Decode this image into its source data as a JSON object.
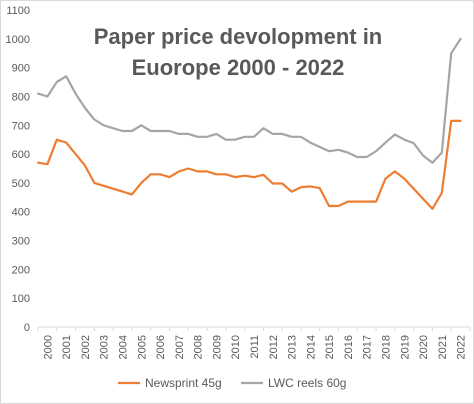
{
  "chart_data": {
    "type": "line",
    "title_lines": [
      "Paper price devolopment in",
      "Euorope 2000 - 2022"
    ],
    "xlabel": "",
    "ylabel": "",
    "ylim": [
      0,
      1100
    ],
    "yticks": [
      0,
      100,
      200,
      300,
      400,
      500,
      600,
      700,
      800,
      900,
      1000,
      1100
    ],
    "xlim": [
      2000,
      2023
    ],
    "xticks": [
      2000,
      2001,
      2002,
      2003,
      2004,
      2005,
      2006,
      2007,
      2008,
      2009,
      2010,
      2011,
      2012,
      2013,
      2014,
      2015,
      2016,
      2017,
      2018,
      2019,
      2020,
      2021,
      2022
    ],
    "grid": false,
    "legend_position": "bottom",
    "series": [
      {
        "name": "Newsprint 45g",
        "color": "#ed7d31",
        "points": [
          [
            2000,
            570
          ],
          [
            2000.5,
            565
          ],
          [
            2001,
            650
          ],
          [
            2001.5,
            640
          ],
          [
            2002,
            600
          ],
          [
            2002.5,
            560
          ],
          [
            2003,
            500
          ],
          [
            2003.5,
            490
          ],
          [
            2004,
            480
          ],
          [
            2004.5,
            470
          ],
          [
            2005,
            460
          ],
          [
            2005.5,
            500
          ],
          [
            2006,
            530
          ],
          [
            2006.5,
            530
          ],
          [
            2007,
            520
          ],
          [
            2007.5,
            540
          ],
          [
            2008,
            550
          ],
          [
            2008.5,
            540
          ],
          [
            2009,
            540
          ],
          [
            2009.5,
            530
          ],
          [
            2010,
            530
          ],
          [
            2010.5,
            520
          ],
          [
            2011,
            525
          ],
          [
            2011.5,
            520
          ],
          [
            2012,
            528
          ],
          [
            2012.5,
            498
          ],
          [
            2013,
            498
          ],
          [
            2013.5,
            470
          ],
          [
            2014,
            485
          ],
          [
            2014.5,
            488
          ],
          [
            2015,
            482
          ],
          [
            2015.5,
            420
          ],
          [
            2016,
            420
          ],
          [
            2016.5,
            435
          ],
          [
            2017,
            435
          ],
          [
            2017.5,
            435
          ],
          [
            2018,
            435
          ],
          [
            2018.5,
            515
          ],
          [
            2019,
            540
          ],
          [
            2019.5,
            515
          ],
          [
            2020,
            480
          ],
          [
            2020.5,
            445
          ],
          [
            2021,
            410
          ],
          [
            2021.5,
            465
          ],
          [
            2022,
            715
          ],
          [
            2022.5,
            715
          ]
        ]
      },
      {
        "name": "LWC reels 60g",
        "color": "#a5a5a5",
        "points": [
          [
            2000,
            810
          ],
          [
            2000.5,
            800
          ],
          [
            2001,
            850
          ],
          [
            2001.5,
            870
          ],
          [
            2002,
            810
          ],
          [
            2002.5,
            760
          ],
          [
            2003,
            720
          ],
          [
            2003.5,
            700
          ],
          [
            2004,
            690
          ],
          [
            2004.5,
            680
          ],
          [
            2005,
            680
          ],
          [
            2005.5,
            700
          ],
          [
            2006,
            680
          ],
          [
            2006.5,
            680
          ],
          [
            2007,
            680
          ],
          [
            2007.5,
            670
          ],
          [
            2008,
            670
          ],
          [
            2008.5,
            660
          ],
          [
            2009,
            660
          ],
          [
            2009.5,
            670
          ],
          [
            2010,
            650
          ],
          [
            2010.5,
            650
          ],
          [
            2011,
            660
          ],
          [
            2011.5,
            660
          ],
          [
            2012,
            690
          ],
          [
            2012.5,
            670
          ],
          [
            2013,
            670
          ],
          [
            2013.5,
            660
          ],
          [
            2014,
            660
          ],
          [
            2014.5,
            640
          ],
          [
            2015,
            625
          ],
          [
            2015.5,
            610
          ],
          [
            2016,
            615
          ],
          [
            2016.5,
            605
          ],
          [
            2017,
            590
          ],
          [
            2017.5,
            590
          ],
          [
            2018,
            610
          ],
          [
            2018.5,
            640
          ],
          [
            2019,
            668
          ],
          [
            2019.5,
            650
          ],
          [
            2020,
            638
          ],
          [
            2020.5,
            595
          ],
          [
            2021,
            570
          ],
          [
            2021.5,
            605
          ],
          [
            2022,
            950
          ],
          [
            2022.5,
            1000
          ]
        ]
      }
    ]
  }
}
